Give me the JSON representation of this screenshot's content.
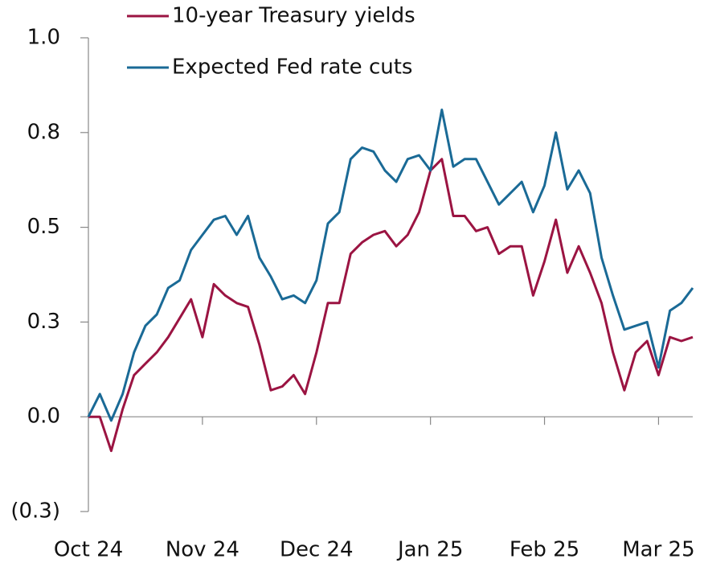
{
  "chart_data": {
    "type": "line",
    "categories": [
      "Oct 24",
      null,
      null,
      null,
      null,
      null,
      null,
      null,
      null,
      null,
      "Nov 24",
      null,
      null,
      null,
      null,
      null,
      null,
      null,
      null,
      null,
      "Dec 24",
      null,
      null,
      null,
      null,
      null,
      null,
      null,
      null,
      null,
      "Jan 25",
      null,
      null,
      null,
      null,
      null,
      null,
      null,
      null,
      null,
      "Feb 25",
      null,
      null,
      null,
      null,
      null,
      null,
      null,
      null,
      null,
      "Mar 25",
      null,
      null,
      null
    ],
    "series": [
      {
        "name": "10-year Treasury yields",
        "color": "#9b1442",
        "values": [
          0,
          0.0,
          -0.09,
          0.02,
          0.11,
          0.14,
          0.17,
          0.21,
          0.26,
          0.31,
          0.21,
          0.35,
          0.32,
          0.3,
          0.29,
          0.19,
          0.07,
          0.08,
          0.11,
          0.06,
          0.17,
          0.3,
          0.3,
          0.43,
          0.46,
          0.48,
          0.49,
          0.45,
          0.48,
          0.54,
          0.65,
          0.68,
          0.53,
          0.53,
          0.49,
          0.5,
          0.43,
          0.45,
          0.45,
          0.32,
          0.41,
          0.52,
          0.38,
          0.45,
          0.38,
          0.3,
          0.17,
          0.07,
          0.17,
          0.2,
          0.11,
          0.21,
          0.2,
          0.21
        ]
      },
      {
        "name": "Expected Fed rate cuts",
        "color": "#1a6a96",
        "values": [
          0,
          0.06,
          -0.01,
          0.06,
          0.17,
          0.24,
          0.27,
          0.34,
          0.36,
          0.44,
          0.48,
          0.52,
          0.53,
          0.48,
          0.53,
          0.42,
          0.37,
          0.31,
          0.32,
          0.3,
          0.36,
          0.51,
          0.54,
          0.68,
          0.71,
          0.7,
          0.65,
          0.62,
          0.68,
          0.69,
          0.65,
          0.81,
          0.66,
          0.68,
          0.68,
          0.62,
          0.56,
          0.59,
          0.62,
          0.54,
          0.61,
          0.75,
          0.6,
          0.65,
          0.59,
          0.42,
          0.32,
          0.23,
          0.24,
          0.25,
          0.13,
          0.28,
          0.3,
          0.34
        ]
      }
    ],
    "ylim": [
      -0.25,
      1.0
    ],
    "yticks": [
      {
        "value": -0.25,
        "label": "(0.3)"
      },
      {
        "value": 0,
        "label": "0.0"
      },
      {
        "value": 0.25,
        "label": "0.3"
      },
      0.5,
      {
        "value": 0.75,
        "label": "0.8"
      },
      {
        "value": 1.0,
        "label": "1.0"
      }
    ],
    "legend": "upper left"
  }
}
